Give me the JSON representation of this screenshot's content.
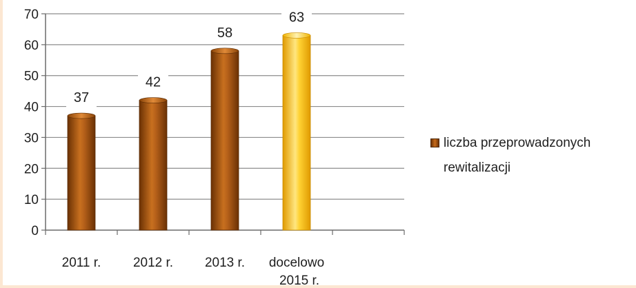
{
  "chart_data": {
    "type": "bar",
    "title": "",
    "xlabel": "",
    "ylabel": "",
    "categories": [
      "2011 r.",
      "2012 r.",
      "2013 r.",
      "docelowo 2015 r."
    ],
    "series": [
      {
        "name": "liczba przeprowadzonych rewitalizacji",
        "values": [
          37,
          42,
          58,
          63
        ]
      }
    ],
    "ylim": [
      0,
      70
    ],
    "yticks": [
      0,
      10,
      20,
      30,
      40,
      50,
      60,
      70
    ],
    "grid": true,
    "legend_position": "right",
    "colors": {
      "bar": "#a0520f",
      "bar_highlight": "#ffc000",
      "grid": "#8c8c8c"
    }
  }
}
